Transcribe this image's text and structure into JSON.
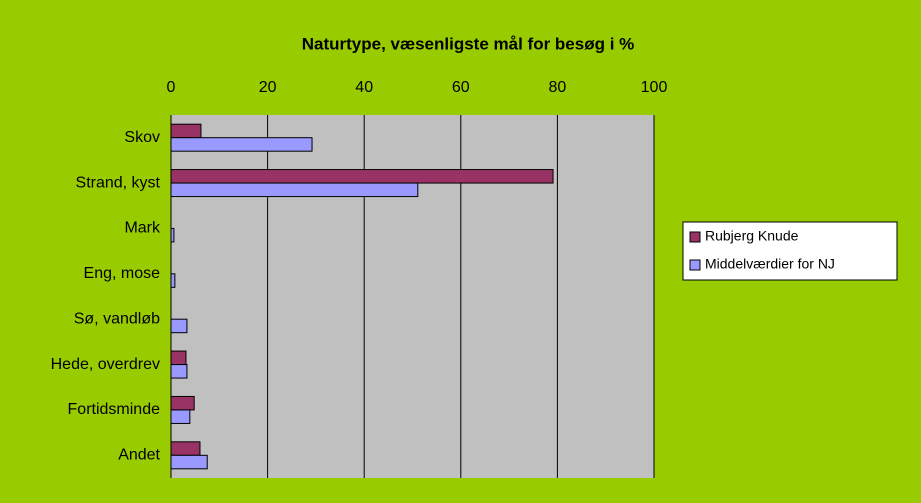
{
  "chart_data": {
    "type": "hbar",
    "title": "Naturtype, væsenligste mål for besøg i %",
    "categories": [
      "Skov",
      "Strand, kyst",
      "Mark",
      "Eng, mose",
      "Sø, vandløb",
      "Hede, overdrev",
      "Fortidsminde",
      "Andet"
    ],
    "series": [
      {
        "name": "Rubjerg Knude",
        "color": "#993366",
        "values": [
          6.2,
          79.1,
          0,
          0,
          0,
          3.1,
          4.8,
          6
        ]
      },
      {
        "name": "Middelværdier for NJ",
        "color": "#9999ff",
        "values": [
          29.2,
          51.1,
          0.6,
          0.8,
          3.3,
          3.3,
          3.9,
          7.5
        ]
      }
    ],
    "xlim": [
      0,
      100
    ],
    "xticks": [
      0,
      20,
      40,
      60,
      80,
      100
    ],
    "grid": true,
    "legend": "right"
  }
}
